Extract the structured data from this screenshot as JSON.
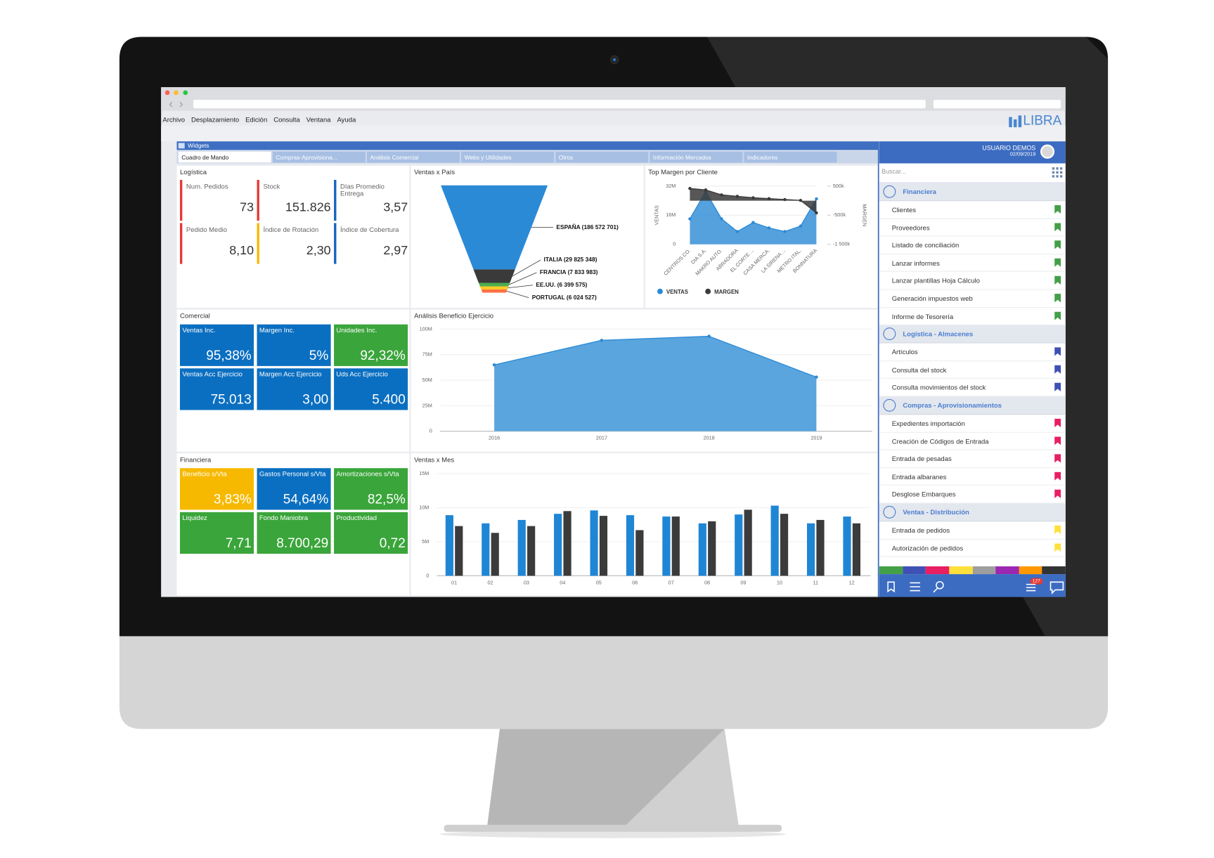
{
  "menu": [
    "Archivo",
    "Desplazamiento",
    "Edición",
    "Consulta",
    "Ventana",
    "Ayuda"
  ],
  "brand": "LIBRA",
  "window_title": "Widgets",
  "tabs": [
    "Cuadro de Mando",
    "Compras-Aprovisiona...",
    "Análisis Comercial",
    "Webs y Utilidades",
    "Otros",
    "Información Mercados",
    "Indicadores"
  ],
  "kpi_panels": [
    {
      "title": "Logística",
      "style": "bar",
      "items": [
        {
          "label": "Num. Pedidos",
          "value": "73",
          "color": "#e53935"
        },
        {
          "label": "Stock",
          "value": "151.826",
          "color": "#e53935"
        },
        {
          "label": "Días Promedio Entrega",
          "value": "3,57",
          "color": "#1565c0"
        },
        {
          "label": "Pedido Medio",
          "value": "8,10",
          "color": "#e53935"
        },
        {
          "label": "Índice de Rotación",
          "value": "2,30",
          "color": "#f9b800"
        },
        {
          "label": "Índice de Cobertura",
          "value": "2,97",
          "color": "#1565c0"
        }
      ]
    },
    {
      "title": "Comercial",
      "style": "tile",
      "items": [
        {
          "label": "Ventas Inc.",
          "value": "95,38%",
          "color": "#0b6fc1"
        },
        {
          "label": "Margen Inc.",
          "value": "5%",
          "color": "#0b6fc1"
        },
        {
          "label": "Unidades Inc.",
          "value": "92,32%",
          "color": "#3aa53a"
        },
        {
          "label": "Ventas Acc Ejercicio",
          "value": "75.013",
          "color": "#0b6fc1"
        },
        {
          "label": "Margen Acc Ejercicio",
          "value": "3,00",
          "color": "#0b6fc1"
        },
        {
          "label": "Uds Acc Ejercicio",
          "value": "5.400",
          "color": "#0b6fc1"
        }
      ]
    },
    {
      "title": "Financiera",
      "style": "tile",
      "items": [
        {
          "label": "Beneficio s/Vta",
          "value": "3,83%",
          "color": "#f7b900"
        },
        {
          "label": "Gastos Personal s/Vta",
          "value": "54,64%",
          "color": "#0b6fc1"
        },
        {
          "label": "Amortizaciones s/Vta",
          "value": "82,5%",
          "color": "#3aa53a"
        },
        {
          "label": "Liquidez",
          "value": "7,71",
          "color": "#3aa53a"
        },
        {
          "label": "Fondo Maniobra",
          "value": "8.700,29",
          "color": "#3aa53a"
        },
        {
          "label": "Productividad",
          "value": "0,72",
          "color": "#3aa53a"
        }
      ]
    }
  ],
  "chart_data": [
    {
      "type": "funnel",
      "title": "Ventas x País",
      "values": [
        186572701,
        29825348,
        7833983,
        6399575,
        6024527
      ],
      "value_labels": [
        "ESPAÑA (186 572 701)",
        "ITALIA (29 825 348)",
        "FRANCIA (7 833 983)",
        "EE.UU. (6 399 575)",
        "PORTUGAL (6 024 527)"
      ],
      "colors": [
        "#2b8ad6",
        "#3a3a3a",
        "#4caf50",
        "#ffca28",
        "#ff7043"
      ]
    },
    {
      "type": "line",
      "title": "Top Margen por Cliente",
      "categories": [
        "CENTROS CO.",
        "DIA S.A.",
        "MAKRO AUTO.",
        "ABRADORA",
        "EL CORTE ...",
        "CASA MERCA.",
        "LA SIRENA ...",
        "METRO ITAL.",
        "BONNATURA"
      ],
      "series": [
        {
          "name": "VENTAS",
          "color": "#2b8ad6",
          "values": [
            14000000,
            29000000,
            14000000,
            7000000,
            12000000,
            9000000,
            7000000,
            10000000,
            25000000
          ]
        },
        {
          "name": "MARGEN",
          "color": "#3a3a3a",
          "axis": "y2",
          "values": [
            420000,
            370000,
            200000,
            150000,
            100000,
            70000,
            40000,
            10000,
            -420000
          ]
        }
      ],
      "ylim": [
        0,
        32000000
      ],
      "yticks": [
        0,
        {
          "value": 16000000,
          "label": "16M"
        },
        {
          "value": 32000000,
          "label": "32M"
        }
      ],
      "y2lim": [
        -1500000,
        500000
      ],
      "y2ticks": [
        {
          "value": 500000,
          "label": "500k"
        },
        {
          "value": -500000,
          "label": "-500k"
        },
        {
          "value": -1500000,
          "label": "-1 500k"
        }
      ],
      "ylabel": "VENTAS",
      "y2label": "MARGEN",
      "grid": true
    },
    {
      "type": "area",
      "title": "Análisis Beneficio Ejercicio",
      "categories": [
        "2016",
        "2017",
        "2018",
        "2019"
      ],
      "values": [
        65000000,
        89000000,
        93000000,
        53000000
      ],
      "color": "#5aa5de",
      "ylim": [
        0,
        100000000
      ],
      "yticks": [
        0,
        {
          "value": 25000000,
          "label": "25M"
        },
        {
          "value": 50000000,
          "label": "50M"
        },
        {
          "value": 75000000,
          "label": "75M"
        },
        {
          "value": 100000000,
          "label": "100M"
        }
      ],
      "grid": true
    },
    {
      "type": "bar",
      "title": "Ventas x Mes",
      "categories": [
        "01",
        "02",
        "03",
        "04",
        "05",
        "06",
        "07",
        "08",
        "09",
        "10",
        "11",
        "12"
      ],
      "series": [
        {
          "color": "#1f86d6",
          "values": [
            8900000,
            7700000,
            8200000,
            9100000,
            9600000,
            8900000,
            8700000,
            7700000,
            9000000,
            10300000,
            7700000,
            8700000
          ]
        },
        {
          "color": "#3b3b3b",
          "values": [
            7300000,
            6300000,
            7300000,
            9500000,
            8800000,
            6700000,
            8700000,
            8000000,
            9700000,
            9100000,
            8200000,
            7700000
          ]
        }
      ],
      "ylim": [
        0,
        15000000
      ],
      "yticks": [
        0,
        {
          "value": 5000000,
          "label": "5M"
        },
        {
          "value": 10000000,
          "label": "10M"
        },
        {
          "value": 15000000,
          "label": "15M"
        }
      ],
      "grid": true
    }
  ],
  "sidebar": {
    "user": "USUARIO DEMOS",
    "date": "02/09/2019",
    "search_placeholder": "Buscar...",
    "badge": "127",
    "sections": [
      {
        "title": "Financiera",
        "color": "#43a047",
        "items": [
          "Clientes",
          "Proveedores",
          "Listado de conciliación",
          "Lanzar informes",
          "Lanzar plantillas Hoja Cálculo",
          "Generación impuestos web",
          "Informe de Tesorería"
        ]
      },
      {
        "title": "Logística - Almacenes",
        "color": "#3f51b5",
        "items": [
          "Artículos",
          "Consulta del stock",
          "Consulta movimientos del stock"
        ]
      },
      {
        "title": "Compras - Aprovisionamientos",
        "color": "#e91e63",
        "items": [
          "Expedientes importación",
          "Creación de Códigos de Entrada",
          "Entrada de pesadas",
          "Entrada albaranes",
          "Desglose Embarques"
        ]
      },
      {
        "title": "Ventas - Distribución",
        "color": "#ffe03b",
        "items": [
          "Entrada de pedidos",
          "Autorización de pedidos"
        ]
      }
    ],
    "stripe_colors": [
      "#43a047",
      "#3f51b5",
      "#e91e63",
      "#ffe03b",
      "#9e9e9e",
      "#9c27b0",
      "#ff9800",
      "#333333"
    ]
  }
}
